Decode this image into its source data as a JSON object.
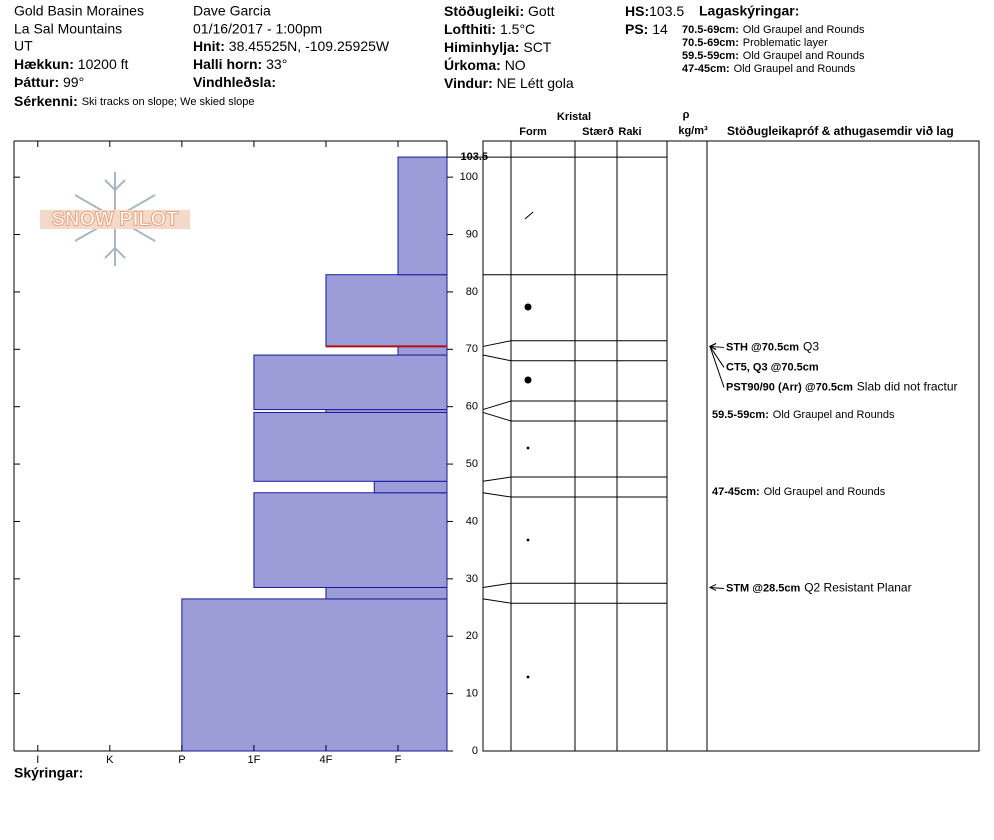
{
  "header": {
    "place": "Gold Basin Moraines",
    "range": "La Sal Mountains",
    "state": "UT",
    "observer": "Dave Garcia",
    "datetime": "01/16/2017 - 1:00pm",
    "col1": [
      {
        "label": "Hækkun:",
        "value": "10200 ft"
      },
      {
        "label": "Þáttur:",
        "value": "99°"
      }
    ],
    "col2": [
      {
        "label": "Hnit:",
        "value": "38.45525N, -109.25925W"
      },
      {
        "label": "Halli horn:",
        "value": "33°"
      },
      {
        "label": "Vindhleðsla:"
      }
    ],
    "col3": [
      {
        "label": "Stöðugleiki:",
        "value": "Gott"
      },
      {
        "label": "Lofthiti:",
        "value": "1.5°C"
      },
      {
        "label": "Himinhylja:",
        "value": "SCT"
      },
      {
        "label": "Úrkoma:",
        "value": "NO"
      },
      {
        "label": "Vindur:",
        "value": "NE Létt gola"
      }
    ],
    "features": {
      "label": "Sérkenni:",
      "value": "Ski tracks on slope; We skied slope"
    },
    "hs_label": "HS:",
    "ps_label": "PS:",
    "ps": "14",
    "notes_title": "Lagaskýringar:",
    "notes": [
      {
        "label": "70.5-69cm:",
        "text": "Old Graupel and Rounds"
      },
      {
        "label": "70.5-69cm:",
        "text": "Problematic layer"
      },
      {
        "label": "59.5-59cm:",
        "text": "Old Graupel and Rounds"
      },
      {
        "label": "47-45cm:",
        "text": "Old Graupel and Rounds"
      }
    ],
    "legend_label": "Skýringar:",
    "logo": "SNOW PILOT"
  },
  "chart_data": {
    "type": "snow-profile",
    "hs": 103.5,
    "ylim": [
      0,
      106.3
    ],
    "yticks": [
      0,
      10,
      20,
      30,
      40,
      50,
      60,
      70,
      80,
      90,
      100
    ],
    "xlim": [
      6.33,
      0.32
    ],
    "xticks": [
      {
        "value": 6,
        "label": "I"
      },
      {
        "value": 5,
        "label": "K"
      },
      {
        "value": 4,
        "label": "P"
      },
      {
        "value": 3,
        "label": "1F"
      },
      {
        "value": 2,
        "label": "4F"
      },
      {
        "value": 1,
        "label": "F"
      }
    ],
    "color": "#9c9cd8",
    "edge_color": "#1a1a9a",
    "concern_color": "#b01010",
    "layer_of_concern": 70.5,
    "layers": [
      {
        "bottom": 0,
        "top": 26.5,
        "hardness": 4
      },
      {
        "bottom": 26.5,
        "top": 28.5,
        "hardness": 2
      },
      {
        "bottom": 28.5,
        "top": 45,
        "hardness": 3
      },
      {
        "bottom": 45,
        "top": 47,
        "hardness": 1.33
      },
      {
        "bottom": 47,
        "top": 59,
        "hardness": 3
      },
      {
        "bottom": 59,
        "top": 59.5,
        "hardness": 2
      },
      {
        "bottom": 59.5,
        "top": 69,
        "hardness": 3
      },
      {
        "bottom": 69,
        "top": 70.5,
        "hardness": 1
      },
      {
        "bottom": 70.5,
        "top": 83,
        "hardness": 2
      },
      {
        "bottom": 83,
        "top": 103.5,
        "hardness": 1
      }
    ],
    "columns": {
      "group": "Kristal",
      "form": "Form",
      "size": "Stærð",
      "moisture": "Raki",
      "density_symbol": "ρ",
      "density_unit": "kg/m³",
      "tests": "Stöðugleikapróf & athugasemdir við lag"
    },
    "tests": [
      {
        "height": 70.5,
        "name": "STH @70.5cm",
        "note": "Q3"
      },
      {
        "height": 70.5,
        "name": "CT5, Q3 @70.5cm"
      },
      {
        "height": 70.5,
        "name": "PST90/90 (Arr) @70.5cm",
        "note": "Slab did not fractur"
      },
      {
        "height": 28.5,
        "name": "STM @28.5cm",
        "note": "Q2 Resistant Planar"
      }
    ],
    "comments": [
      {
        "label": "59.5-59cm:",
        "text": "Old Graupel and Rounds"
      },
      {
        "label": "47-45cm:",
        "text": "Old Graupel and Rounds"
      }
    ]
  }
}
